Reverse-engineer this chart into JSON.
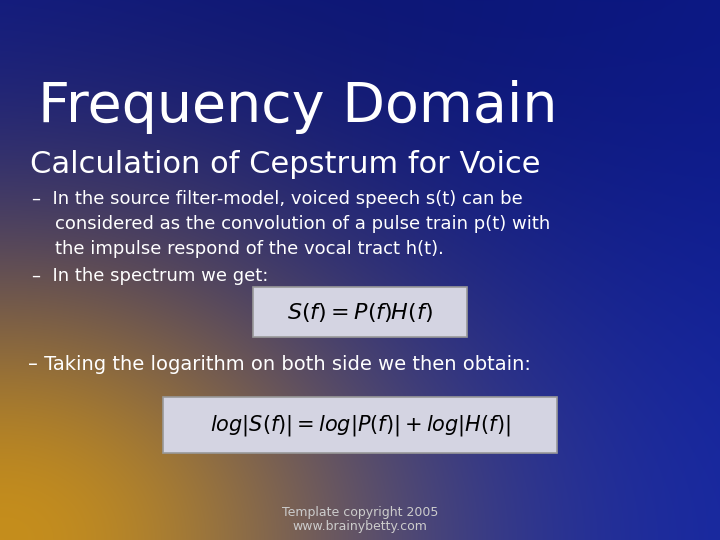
{
  "title": "Frequency Domain",
  "subtitle": "Calculation of Cepstrum for Voice",
  "bullet1_line1": "–  In the source filter-model, voiced speech s(t) can be",
  "bullet1_line2": "    considered as the convolution of a pulse train p(t) with",
  "bullet1_line3": "    the impulse respond of the vocal tract h(t).",
  "bullet2": "–  In the spectrum we get:",
  "formula1": "$S(f) = P(f)H(f)$",
  "bullet3": "– Taking the logarithm on both side we then obtain:",
  "formula2": "$log|S(f)| = log|P(f)| + log|H(f)|$",
  "footer1": "Template copyright 2005",
  "footer2": "www.brainybetty.com",
  "text_color": "#ffffff",
  "formula_bg": "#d8d8e8",
  "formula_border": "#999999"
}
